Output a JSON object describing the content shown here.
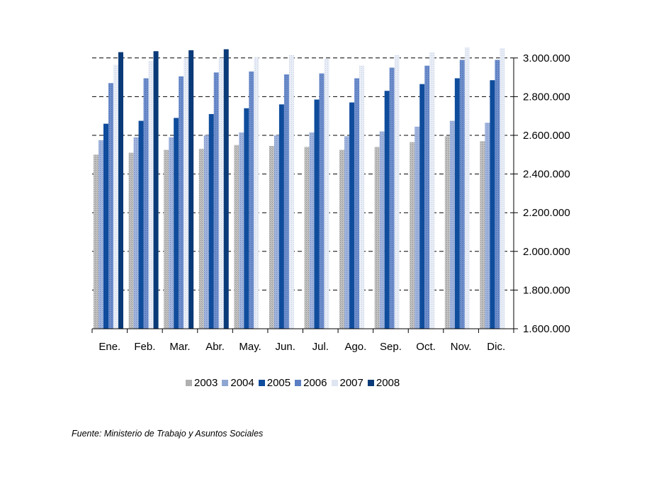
{
  "chart_data": {
    "type": "bar",
    "categories": [
      "Ene.",
      "Feb.",
      "Mar.",
      "Abr.",
      "May.",
      "Jun.",
      "Jul.",
      "Ago.",
      "Sep.",
      "Oct.",
      "Nov.",
      "Dic."
    ],
    "series": [
      {
        "name": "2003",
        "color": "#b3b3b3",
        "values": [
          2500000,
          2510000,
          2525000,
          2530000,
          2550000,
          2545000,
          2540000,
          2525000,
          2540000,
          2565000,
          2595000,
          2570000
        ]
      },
      {
        "name": "2004",
        "color": "#8fa6d3",
        "values": [
          2575000,
          2590000,
          2590000,
          2600000,
          2615000,
          2600000,
          2615000,
          2595000,
          2620000,
          2645000,
          2675000,
          2665000
        ]
      },
      {
        "name": "2005",
        "color": "#0f4c9c",
        "values": [
          2660000,
          2675000,
          2690000,
          2710000,
          2740000,
          2760000,
          2785000,
          2770000,
          2830000,
          2865000,
          2895000,
          2885000
        ]
      },
      {
        "name": "2006",
        "color": "#5b7fc2",
        "values": [
          2870000,
          2895000,
          2905000,
          2925000,
          2930000,
          2915000,
          2920000,
          2895000,
          2950000,
          2960000,
          2990000,
          2990000
        ]
      },
      {
        "name": "2007",
        "color": "#dfe5f1",
        "values": [
          2965000,
          2985000,
          3000000,
          3000000,
          3005000,
          3015000,
          2995000,
          2960000,
          3015000,
          3030000,
          3055000,
          3050000
        ]
      },
      {
        "name": "2008",
        "color": "#0a3a78",
        "values": [
          3030000,
          3035000,
          3040000,
          3045000,
          null,
          null,
          null,
          null,
          null,
          null,
          null,
          null
        ]
      }
    ],
    "yticks": [
      "1.600.000",
      "1.800.000",
      "2.000.000",
      "2.200.000",
      "2.400.000",
      "2.600.000",
      "2.800.000",
      "3.000.000"
    ],
    "ylim": [
      1600000,
      3000000
    ],
    "yaxis_position": "right",
    "grid": "dashed-horizontal",
    "legend_position": "bottom",
    "title": "",
    "xlabel": "",
    "ylabel": ""
  },
  "source_note": "Fuente: Ministerio de Trabajo y Asuntos Sociales"
}
